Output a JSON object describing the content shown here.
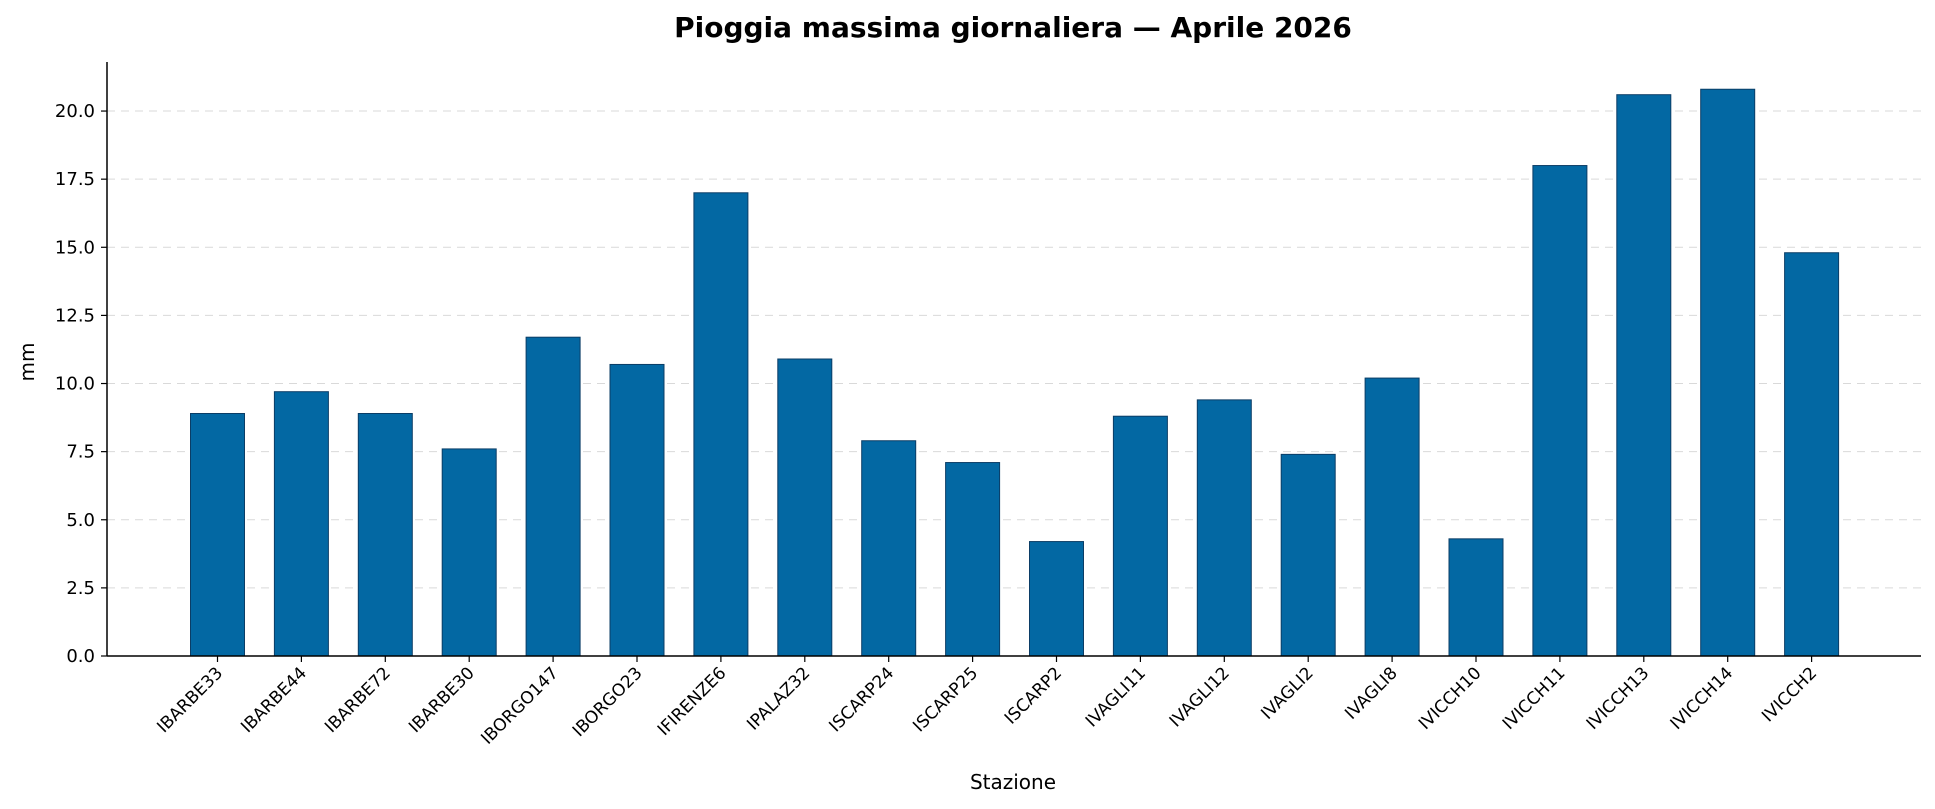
{
  "chart_data": {
    "type": "bar",
    "title": "Pioggia massima giornaliera — Aprile 2026",
    "xlabel": "Stazione",
    "ylabel": "mm",
    "ylim": [
      0,
      21.8
    ],
    "yticks": [
      0.0,
      2.5,
      5.0,
      7.5,
      10.0,
      12.5,
      15.0,
      17.5,
      20.0
    ],
    "ytick_labels": [
      "0.0",
      "2.5",
      "5.0",
      "7.5",
      "10.0",
      "12.5",
      "15.0",
      "17.5",
      "20.0"
    ],
    "grid": "horizontal-dashed",
    "bar_color": "#0368a3",
    "categories": [
      "IBARBE33",
      "IBARBE44",
      "IBARBE72",
      "IBARBE30",
      "IBORGO147",
      "IBORGO23",
      "IFIRENZE6",
      "IPALAZ32",
      "ISCARP24",
      "ISCARP25",
      "ISCARP2",
      "IVAGLI11",
      "IVAGLI12",
      "IVAGLI2",
      "IVAGLI8",
      "IVICCH10",
      "IVICCH11",
      "IVICCH13",
      "IVICCH14",
      "IVICCH2"
    ],
    "values": [
      8.9,
      9.7,
      8.9,
      7.6,
      11.7,
      10.7,
      17.0,
      10.9,
      7.9,
      7.1,
      4.2,
      8.8,
      9.4,
      7.4,
      10.2,
      4.3,
      18.0,
      20.6,
      20.8,
      14.8
    ]
  }
}
